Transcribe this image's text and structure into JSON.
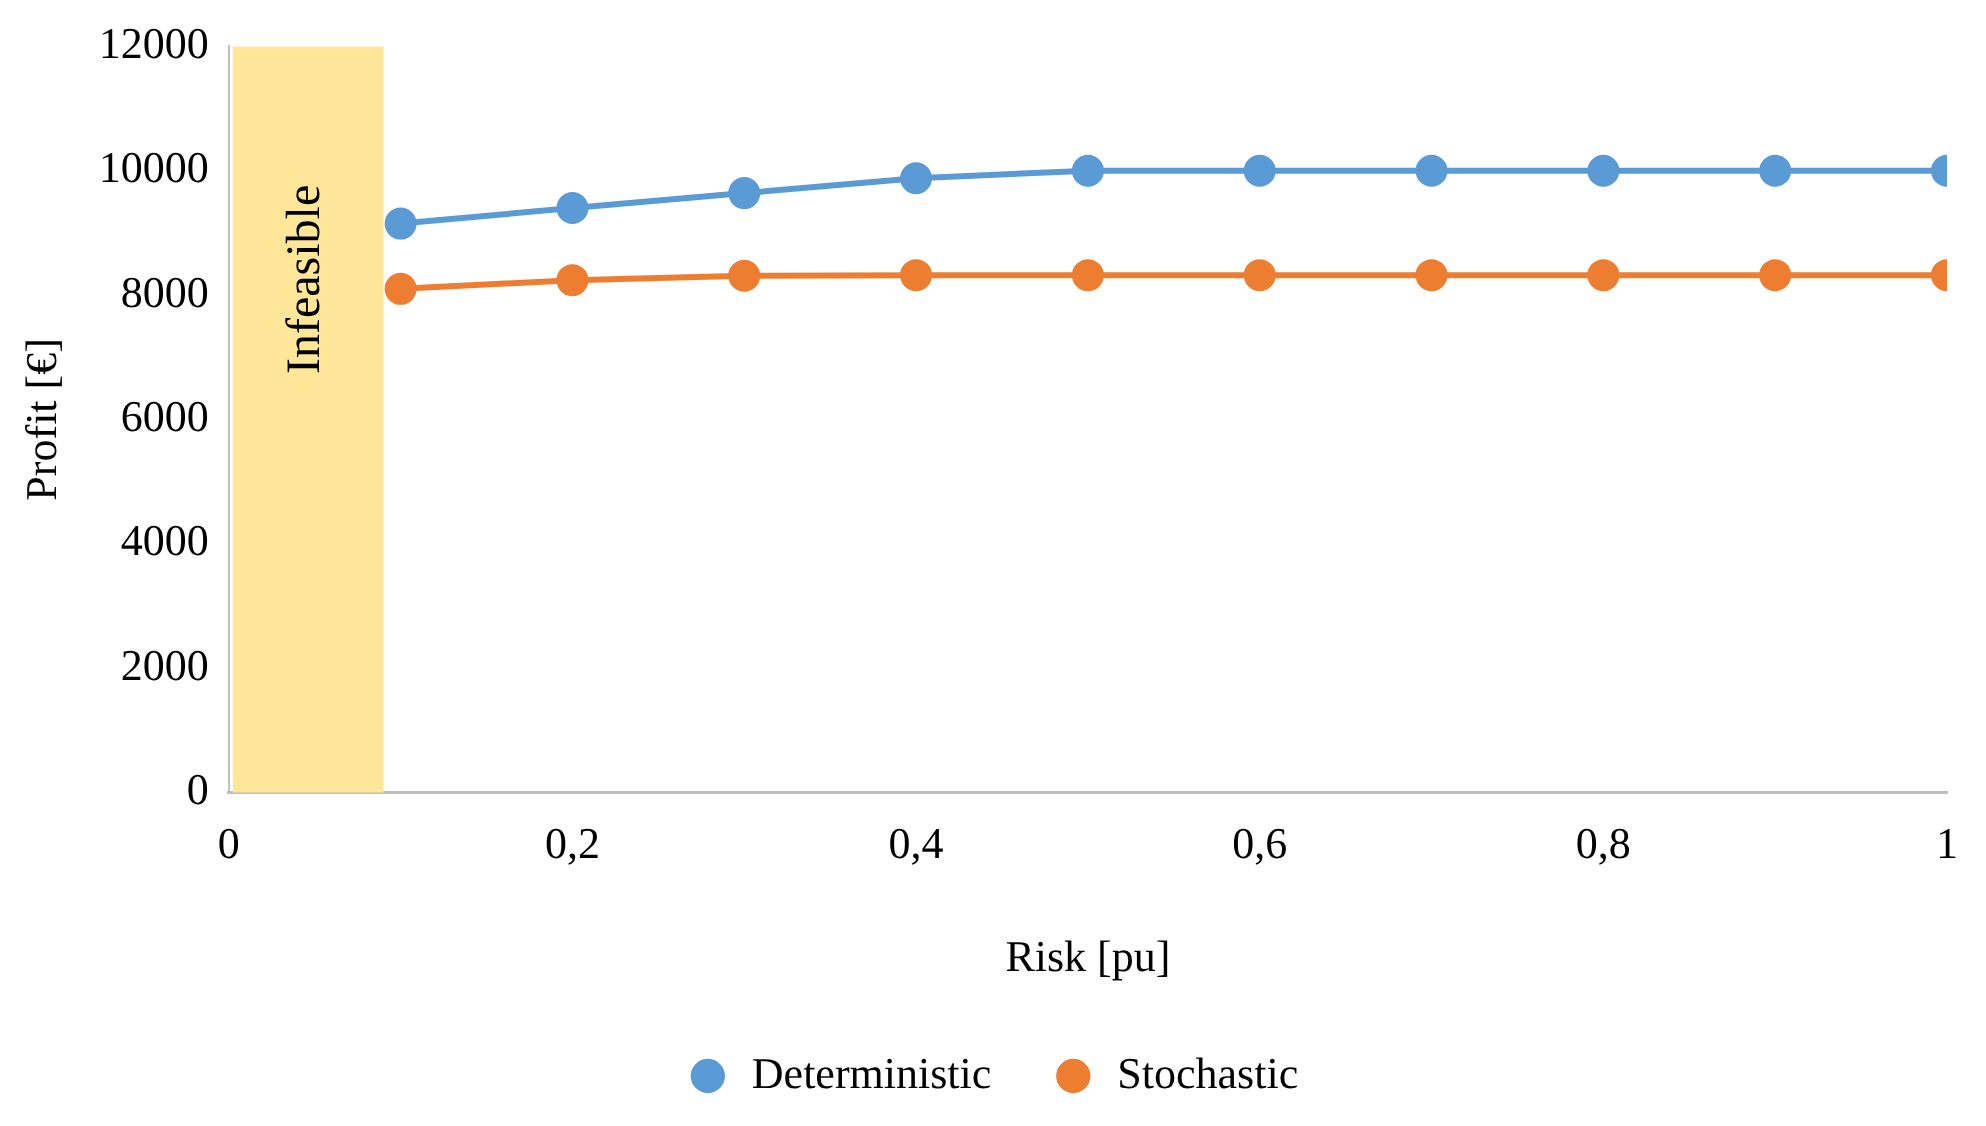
{
  "chart_data": {
    "type": "line",
    "xlabel": "Risk [pu]",
    "ylabel": "Profit [€]",
    "x": [
      0.1,
      0.2,
      0.3,
      0.4,
      0.5,
      0.6,
      0.7,
      0.8,
      0.9,
      1
    ],
    "series": [
      {
        "name": "Deterministic",
        "color": "#5b9bd5",
        "values": [
          9150,
          9400,
          9640,
          9880,
          10000,
          10000,
          10000,
          10000,
          10000,
          10000
        ]
      },
      {
        "name": "Stochastic",
        "color": "#ed7d31",
        "values": [
          8100,
          8240,
          8310,
          8320,
          8320,
          8320,
          8320,
          8320,
          8320,
          8320
        ]
      }
    ],
    "xlim": [
      0,
      1
    ],
    "xticks": [
      0,
      {
        "value": 0.2,
        "label": "0,2"
      },
      {
        "value": 0.4,
        "label": "0,4"
      },
      {
        "value": 0.6,
        "label": "0,6"
      },
      {
        "value": 0.8,
        "label": "0,8"
      },
      1
    ],
    "ylim": [
      0,
      12000
    ],
    "yticks": [
      0,
      2000,
      4000,
      6000,
      8000,
      10000,
      12000
    ],
    "bands": [
      {
        "axis": "x",
        "from": 0,
        "to": 0.09,
        "label": "Infeasible",
        "color": "#ffe699"
      }
    ],
    "grid": false,
    "legend": "bottom",
    "marker": "circle",
    "line_style": "solid"
  }
}
